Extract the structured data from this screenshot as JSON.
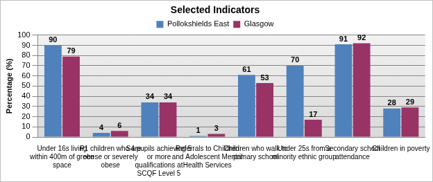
{
  "chart_data": {
    "type": "bar",
    "title": "Selected Indicators",
    "y_label": "Percentage (%)",
    "categories": [
      "Under 16s living within 400m of green space",
      "P1 children who are obese or severely obese",
      "S4 pupils achieving 5 or more qualifications at SCQF Level 5",
      "Referrals to Children and Adolescent Mental Health Services",
      "Children who walk to primary school",
      "Under 25s from a minority ethnic group",
      "Secondary school attendance",
      "Children in poverty"
    ],
    "series": [
      {
        "name": "Pollokshields East",
        "color": "#4f81bd",
        "values": [
          90,
          4,
          34,
          1,
          61,
          70,
          91,
          28
        ]
      },
      {
        "name": "Glasgow",
        "color": "#993366",
        "values": [
          79,
          6,
          34,
          3,
          53,
          17,
          92,
          29
        ]
      }
    ],
    "ylim": [
      0,
      100
    ],
    "yticks": [
      0,
      10,
      20,
      30,
      40,
      50,
      60,
      70,
      80,
      90,
      100
    ],
    "grid": true,
    "legend": "top",
    "data_labels": true
  }
}
